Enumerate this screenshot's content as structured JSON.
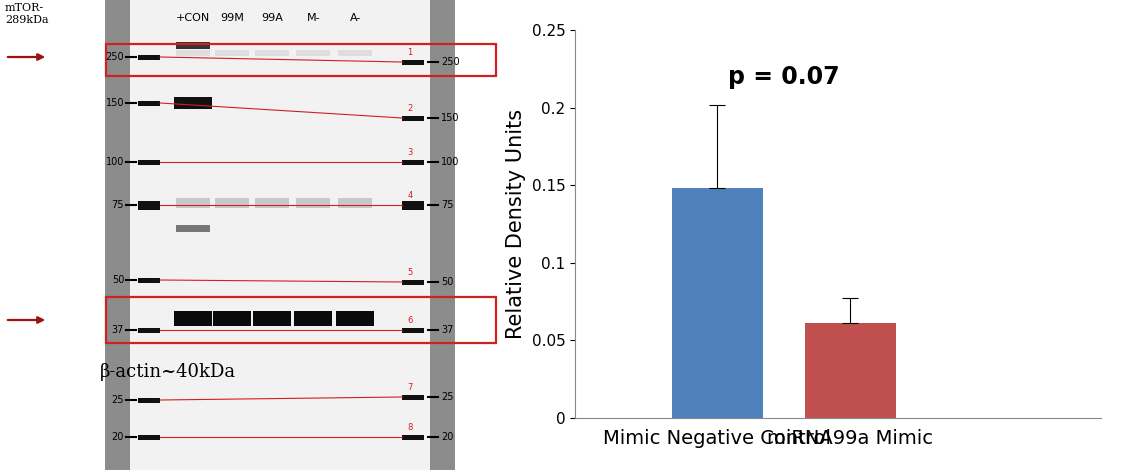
{
  "blot": {
    "header": "mTOR-\n289kDa",
    "lanes": [
      "+CON",
      "99M",
      "99A",
      "M-",
      "A-"
    ],
    "ladder_kda": [
      250,
      150,
      100,
      75,
      50,
      37,
      25,
      20
    ],
    "marker_numbers": [
      1,
      2,
      3,
      4,
      5,
      6,
      7,
      8
    ],
    "band_label": "β-actin~40kDa"
  },
  "chart_data": {
    "type": "bar",
    "categories": [
      "Mimic Negative Control",
      "miRNA99a Mimic"
    ],
    "values": [
      0.148,
      0.061
    ],
    "errors": [
      0.054,
      0.016
    ],
    "colors": [
      "#4f81bd",
      "#c0504d"
    ],
    "ylabel": "Relative Density Units",
    "annotations": [
      "p = 0.07"
    ],
    "ylim": [
      0,
      0.25
    ],
    "yticks": [
      0,
      0.05,
      0.1,
      0.15,
      0.2,
      0.25
    ],
    "grid": false
  }
}
